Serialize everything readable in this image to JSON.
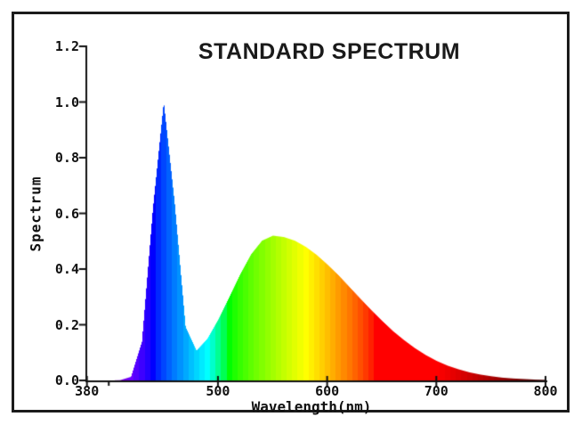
{
  "window": {
    "background_color": "#ffffff",
    "frame_border_color": "#1b1b1b"
  },
  "chart_data": {
    "type": "area",
    "title": "STANDARD SPECTRUM",
    "xlabel": "Wavelength(nm)",
    "ylabel": "Spectrum",
    "xlim": [
      380,
      800
    ],
    "ylim": [
      0.0,
      1.2
    ],
    "grid": false,
    "legend": null,
    "axis_color": "#111111",
    "color_mode": "spectral-wavelength-fill",
    "x_ticks": [
      {
        "label": "380",
        "value": 380
      },
      {
        "label": "500",
        "value": 500
      },
      {
        "label": "600",
        "value": 600
      },
      {
        "label": "700",
        "value": 700
      },
      {
        "label": "800",
        "value": 800
      }
    ],
    "x_minor_ticks": [
      400
    ],
    "y_ticks": [
      {
        "label": "0.0",
        "value": 0.0
      },
      {
        "label": "0.2",
        "value": 0.2
      },
      {
        "label": "0.4",
        "value": 0.4
      },
      {
        "label": "0.6",
        "value": 0.6
      },
      {
        "label": "0.8",
        "value": 0.8
      },
      {
        "label": "1.0",
        "value": 1.0
      },
      {
        "label": "1.2",
        "value": 1.2
      }
    ],
    "series": [
      {
        "name": "standard spectrum",
        "x": [
          380,
          390,
          400,
          410,
          420,
          430,
          440,
          450,
          460,
          470,
          480,
          490,
          500,
          510,
          520,
          530,
          540,
          550,
          560,
          570,
          580,
          590,
          600,
          610,
          620,
          630,
          640,
          650,
          660,
          670,
          680,
          690,
          700,
          710,
          720,
          730,
          740,
          750,
          760,
          770,
          780,
          790,
          800
        ],
        "y": [
          0.0,
          0.0,
          0.0,
          0.001,
          0.013,
          0.139,
          0.614,
          1.0,
          0.638,
          0.192,
          0.107,
          0.15,
          0.219,
          0.299,
          0.381,
          0.453,
          0.502,
          0.52,
          0.515,
          0.502,
          0.48,
          0.451,
          0.416,
          0.378,
          0.336,
          0.294,
          0.253,
          0.214,
          0.177,
          0.145,
          0.116,
          0.091,
          0.07,
          0.053,
          0.04,
          0.029,
          0.021,
          0.015,
          0.01,
          0.007,
          0.005,
          0.003,
          0.002
        ]
      }
    ]
  }
}
